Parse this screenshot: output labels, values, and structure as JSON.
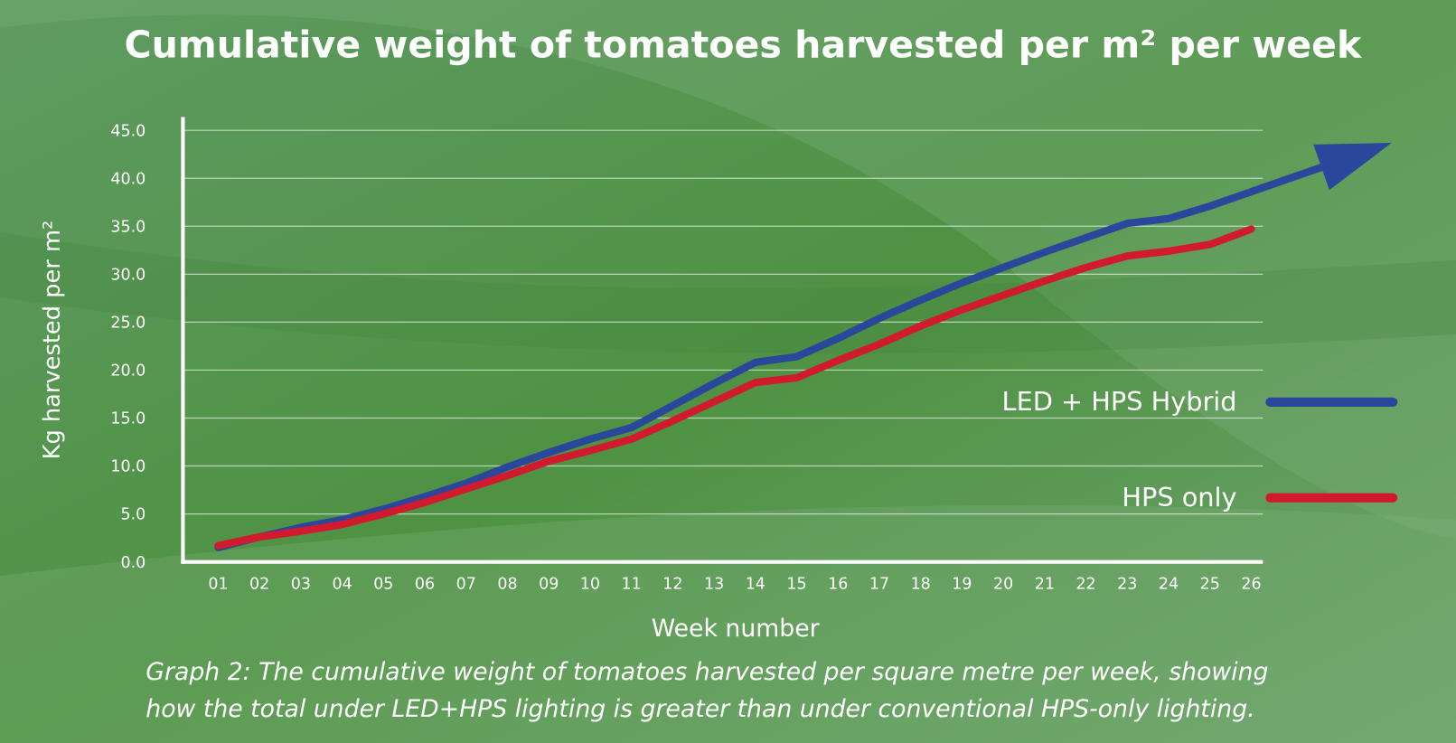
{
  "chart_data": {
    "type": "line",
    "title": "Cumulative weight of tomatoes harvested per m² per week",
    "ylabel": "Kg harvested per m²",
    "xlabel": "Week number",
    "caption": [
      "Graph 2: The cumulative weight of tomatoes harvested per square metre per week, showing",
      "how the total under LED+HPS lighting is greater than under conventional HPS-only lighting."
    ],
    "categories": [
      "01",
      "02",
      "03",
      "04",
      "05",
      "06",
      "07",
      "08",
      "09",
      "10",
      "11",
      "12",
      "13",
      "14",
      "15",
      "16",
      "17",
      "18",
      "19",
      "20",
      "21",
      "22",
      "23",
      "24",
      "25",
      "26"
    ],
    "series": [
      {
        "name": "LED + HPS Hybrid",
        "color": "#2a479b",
        "values": [
          1.5,
          2.6,
          3.6,
          4.4,
          5.5,
          6.8,
          8.2,
          9.9,
          11.4,
          12.8,
          14.0,
          16.3,
          18.6,
          20.8,
          21.4,
          23.3,
          25.4,
          27.3,
          29.1,
          30.7,
          32.3,
          33.8,
          35.3,
          35.8,
          37.1,
          38.6
        ]
      },
      {
        "name": "HPS only",
        "color": "#d11a2e",
        "values": [
          1.7,
          2.6,
          3.2,
          3.9,
          5.0,
          6.2,
          7.6,
          9.0,
          10.5,
          11.6,
          12.8,
          14.7,
          16.7,
          18.7,
          19.2,
          21.0,
          22.7,
          24.6,
          26.3,
          27.8,
          29.3,
          30.7,
          31.9,
          32.4,
          33.1,
          34.7
        ]
      }
    ],
    "ylim": [
      0,
      46
    ],
    "yticks": [
      {
        "value": 0,
        "label": "0.0"
      },
      {
        "value": 5,
        "label": "5.0"
      },
      {
        "value": 10,
        "label": "10.0"
      },
      {
        "value": 15,
        "label": "15.0"
      },
      {
        "value": 20,
        "label": "20.0"
      },
      {
        "value": 25,
        "label": "25.0"
      },
      {
        "value": 30,
        "label": "30.0"
      },
      {
        "value": 35,
        "label": "35.0"
      },
      {
        "value": 40,
        "label": "40.0"
      },
      {
        "value": 45,
        "label": "45.0"
      }
    ],
    "grid": true
  }
}
